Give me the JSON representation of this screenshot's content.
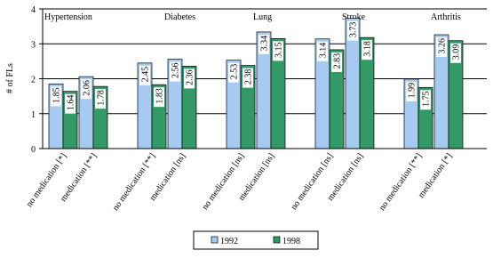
{
  "chart_data": {
    "type": "bar",
    "y_label": "# of FLs",
    "groups": [
      "Hypertension",
      "Diabetes",
      "Lung",
      "Stroke",
      "Arthritis"
    ],
    "categories": [
      "no medication [*]",
      "medication [**]",
      "no medication [**]",
      "medication [ns]",
      "no medication [ns]",
      "medication [ns]",
      "no medication [ns]",
      "medication [ns]",
      "no medication [**]",
      "medication [*]"
    ],
    "series": [
      {
        "name": "1992",
        "color": "#a6caf0",
        "values": [
          1.85,
          2.06,
          2.45,
          2.56,
          2.53,
          3.34,
          3.14,
          3.73,
          1.99,
          3.26
        ]
      },
      {
        "name": "1998",
        "color": "#339966",
        "values": [
          1.64,
          1.78,
          1.83,
          2.36,
          2.38,
          3.15,
          2.83,
          3.18,
          1.75,
          3.09
        ]
      }
    ],
    "ylim": [
      0,
      4
    ],
    "yticks": [
      0,
      1,
      2,
      3,
      4
    ],
    "grid": true
  }
}
